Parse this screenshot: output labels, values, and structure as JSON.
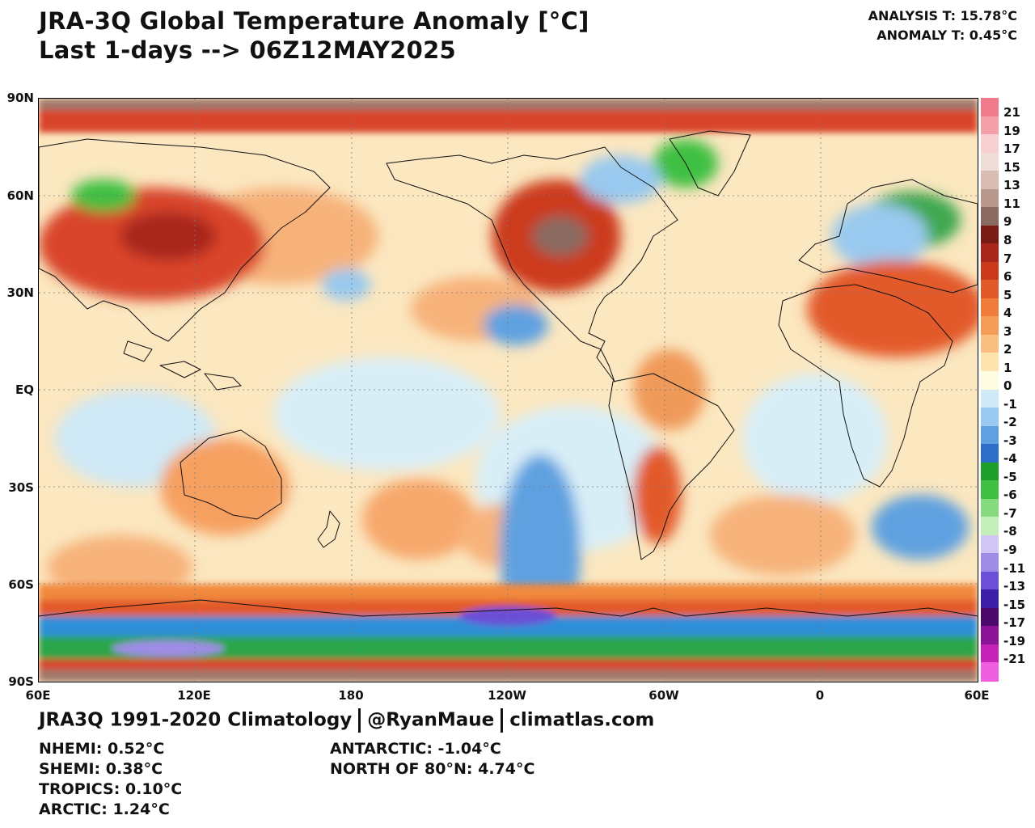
{
  "header": {
    "title_line1": "JRA-3Q Global Temperature Anomaly [°C]",
    "title_line2": "Last 1-days --> 06Z12MAY2025",
    "analysis_t": "ANALYSIS T: 15.78°C",
    "anomaly_t": "ANOMALY T: 0.45°C"
  },
  "map": {
    "lat_labels": [
      "90N",
      "60N",
      "30N",
      "EQ",
      "30S",
      "60S",
      "90S"
    ],
    "lon_labels": [
      "60E",
      "120E",
      "180",
      "120W",
      "60W",
      "0",
      "60E"
    ],
    "colorbar_labels": [
      "21",
      "19",
      "17",
      "15",
      "13",
      "11",
      "9",
      "8",
      "7",
      "6",
      "5",
      "4",
      "3",
      "2",
      "1",
      "0",
      "-1",
      "-2",
      "-3",
      "-4",
      "-5",
      "-6",
      "-7",
      "-8",
      "-9",
      "-11",
      "-13",
      "-15",
      "-17",
      "-19",
      "-21"
    ],
    "colorbar_colors": [
      "#f07a8c",
      "#f4a0aa",
      "#f8cfd3",
      "#eeddd8",
      "#d9bdb3",
      "#b8978c",
      "#8a6a60",
      "#7a1a14",
      "#a8261c",
      "#cc3a1e",
      "#e35a2a",
      "#f07c3c",
      "#f59c58",
      "#f9bf80",
      "#fde3ae",
      "#fdfbe0",
      "#cfe9f6",
      "#99c9ee",
      "#5fa1e0",
      "#2d6fc8",
      "#1e9e2a",
      "#3fc043",
      "#86db7e",
      "#c4efb8",
      "#cfc6f4",
      "#9f8ce6",
      "#6b4fd6",
      "#3b1fa8",
      "#4b0a6a",
      "#8a1294",
      "#c421b6",
      "#f05fe0"
    ]
  },
  "footer": {
    "credit_climatology": "JRA3Q 1991-2020 Climatology",
    "credit_handle": "@RyanMaue",
    "credit_site": "climatlas.com",
    "nhemi": "NHEMI: 0.52°C",
    "shemi": "SHEMI: 0.38°C",
    "tropics": "TROPICS: 0.10°C",
    "arctic": "ARCTIC: 1.24°C",
    "antarctic": "ANTARCTIC: -1.04°C",
    "north_of_80n": "NORTH OF 80°N: 4.74°C"
  }
}
